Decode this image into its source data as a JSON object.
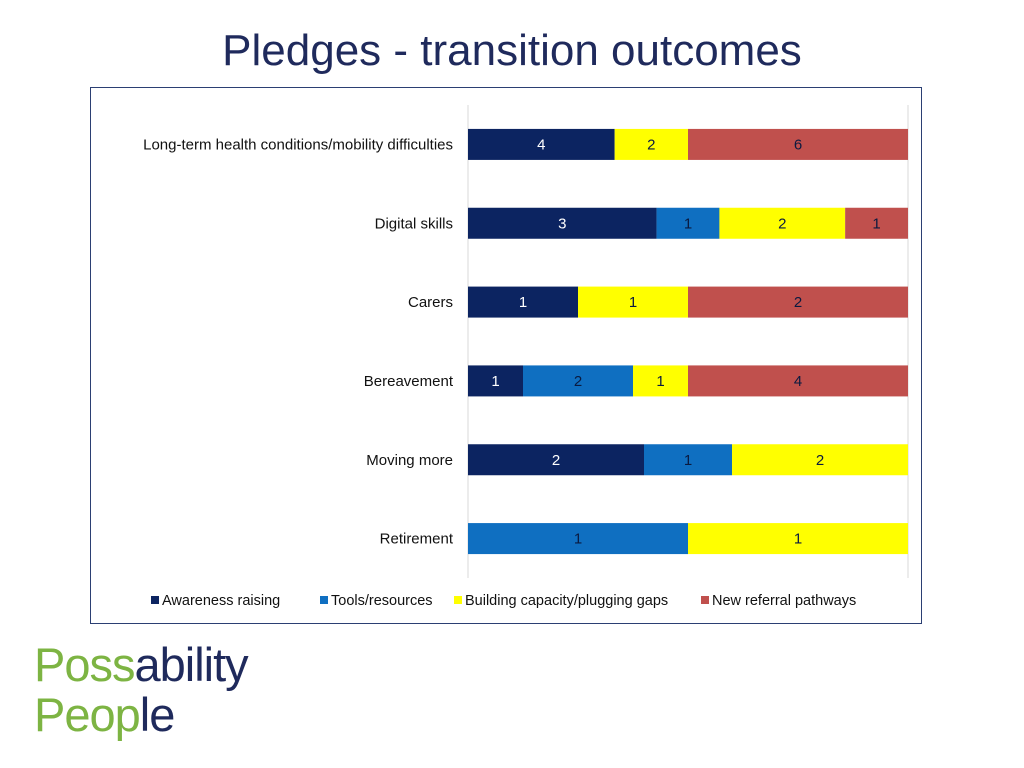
{
  "slide": {
    "title": "Pledges - transition outcomes"
  },
  "logo": {
    "line1_part1": "Poss",
    "line1_part2": "ability",
    "line2_part1": "Peop",
    "line2_part2": "le",
    "colors": {
      "green": "#7db443",
      "navy": "#1f2a5c"
    }
  },
  "chart_data": {
    "type": "bar",
    "orientation": "horizontal",
    "stacking": "percent",
    "categories": [
      "Long-term health conditions/mobility difficulties",
      "Digital skills",
      "Carers",
      "Bereavement",
      "Moving more",
      "Retirement"
    ],
    "series": [
      {
        "name": "Awareness raising",
        "color": "#0c2461",
        "label_color": "#ffffff",
        "values": [
          4,
          3,
          1,
          1,
          2,
          0
        ]
      },
      {
        "name": "Tools/resources",
        "color": "#0f6fc1",
        "label_color": "#0a1a40",
        "values": [
          0,
          1,
          0,
          2,
          1,
          1
        ]
      },
      {
        "name": "Building capacity/plugging gaps",
        "color": "#ffff00",
        "label_color": "#0a1a40",
        "values": [
          2,
          2,
          1,
          1,
          2,
          1
        ]
      },
      {
        "name": "New referral pathways",
        "color": "#c0504d",
        "label_color": "#0a1a40",
        "values": [
          6,
          1,
          2,
          4,
          0,
          0
        ]
      }
    ],
    "data_labels": true,
    "gridlines": true,
    "legend_position": "bottom"
  }
}
